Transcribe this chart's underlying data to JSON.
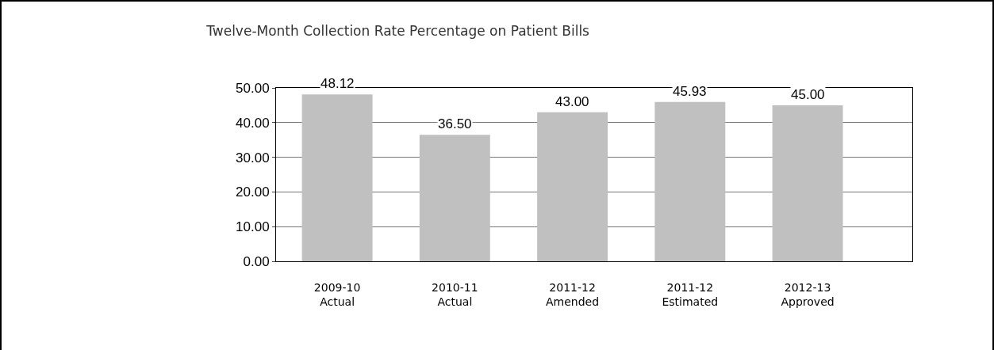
{
  "chart_data": {
    "type": "bar",
    "title": "Twelve-Month Collection Rate Percentage on Patient Bills",
    "categories": [
      "2009-10\nActual",
      "2010-11\nActual",
      "2011-12\nAmended",
      "2011-12\nEstimated",
      "2012-13\nApproved"
    ],
    "values": [
      48.12,
      36.5,
      43,
      45.93,
      45
    ],
    "value_labels": [
      "48.12",
      "36.50",
      "43.00",
      "45.93",
      "45.00"
    ],
    "color": "#c0c0c0",
    "ylim": [
      0,
      50
    ],
    "yticks": [
      {
        "value": 0,
        "label": "0.00"
      },
      {
        "value": 10,
        "label": "10.00"
      },
      {
        "value": 20,
        "label": "20.00"
      },
      {
        "value": 30,
        "label": "30.00"
      },
      {
        "value": 40,
        "label": "40.00"
      },
      {
        "value": 50,
        "label": "50.00"
      }
    ],
    "grid": "y",
    "legend": false
  }
}
